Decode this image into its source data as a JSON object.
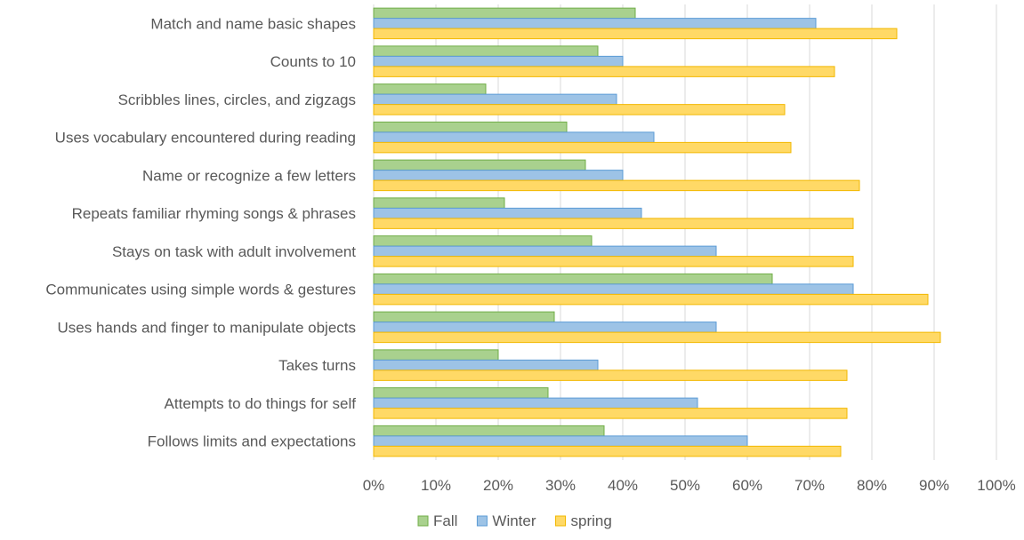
{
  "chart_data": {
    "type": "bar",
    "orientation": "horizontal",
    "title": "",
    "xlabel": "",
    "ylabel": "",
    "xlim": [
      0,
      100
    ],
    "x_unit": "%",
    "x_ticks": [
      "0%",
      "10%",
      "20%",
      "30%",
      "40%",
      "50%",
      "60%",
      "70%",
      "80%",
      "90%",
      "100%"
    ],
    "grid": "vertical",
    "legend_position": "bottom",
    "categories": [
      "Match and name basic shapes",
      "Counts to 10",
      "Scribbles lines, circles, and zigzags",
      "Uses vocabulary encountered during reading",
      "Name or recognize a few letters",
      "Repeats familiar rhyming songs & phrases",
      "Stays on task with adult involvement",
      "Communicates using simple words & gestures",
      "Uses hands and finger to manipulate objects",
      "Takes turns",
      "Attempts to do things for self",
      "Follows limits and expectations"
    ],
    "series": [
      {
        "name": "Fall",
        "color": "#a9d18e",
        "stroke": "#70ad47",
        "values": [
          42,
          36,
          18,
          31,
          34,
          21,
          35,
          64,
          29,
          20,
          28,
          37
        ]
      },
      {
        "name": "Winter",
        "color": "#9dc3e6",
        "stroke": "#5b9bd5",
        "values": [
          71,
          40,
          39,
          45,
          40,
          43,
          55,
          77,
          55,
          36,
          52,
          60
        ]
      },
      {
        "name": "spring",
        "color": "#ffd966",
        "stroke": "#f2b800",
        "values": [
          84,
          74,
          66,
          67,
          78,
          77,
          77,
          89,
          91,
          76,
          76,
          75
        ]
      }
    ]
  }
}
